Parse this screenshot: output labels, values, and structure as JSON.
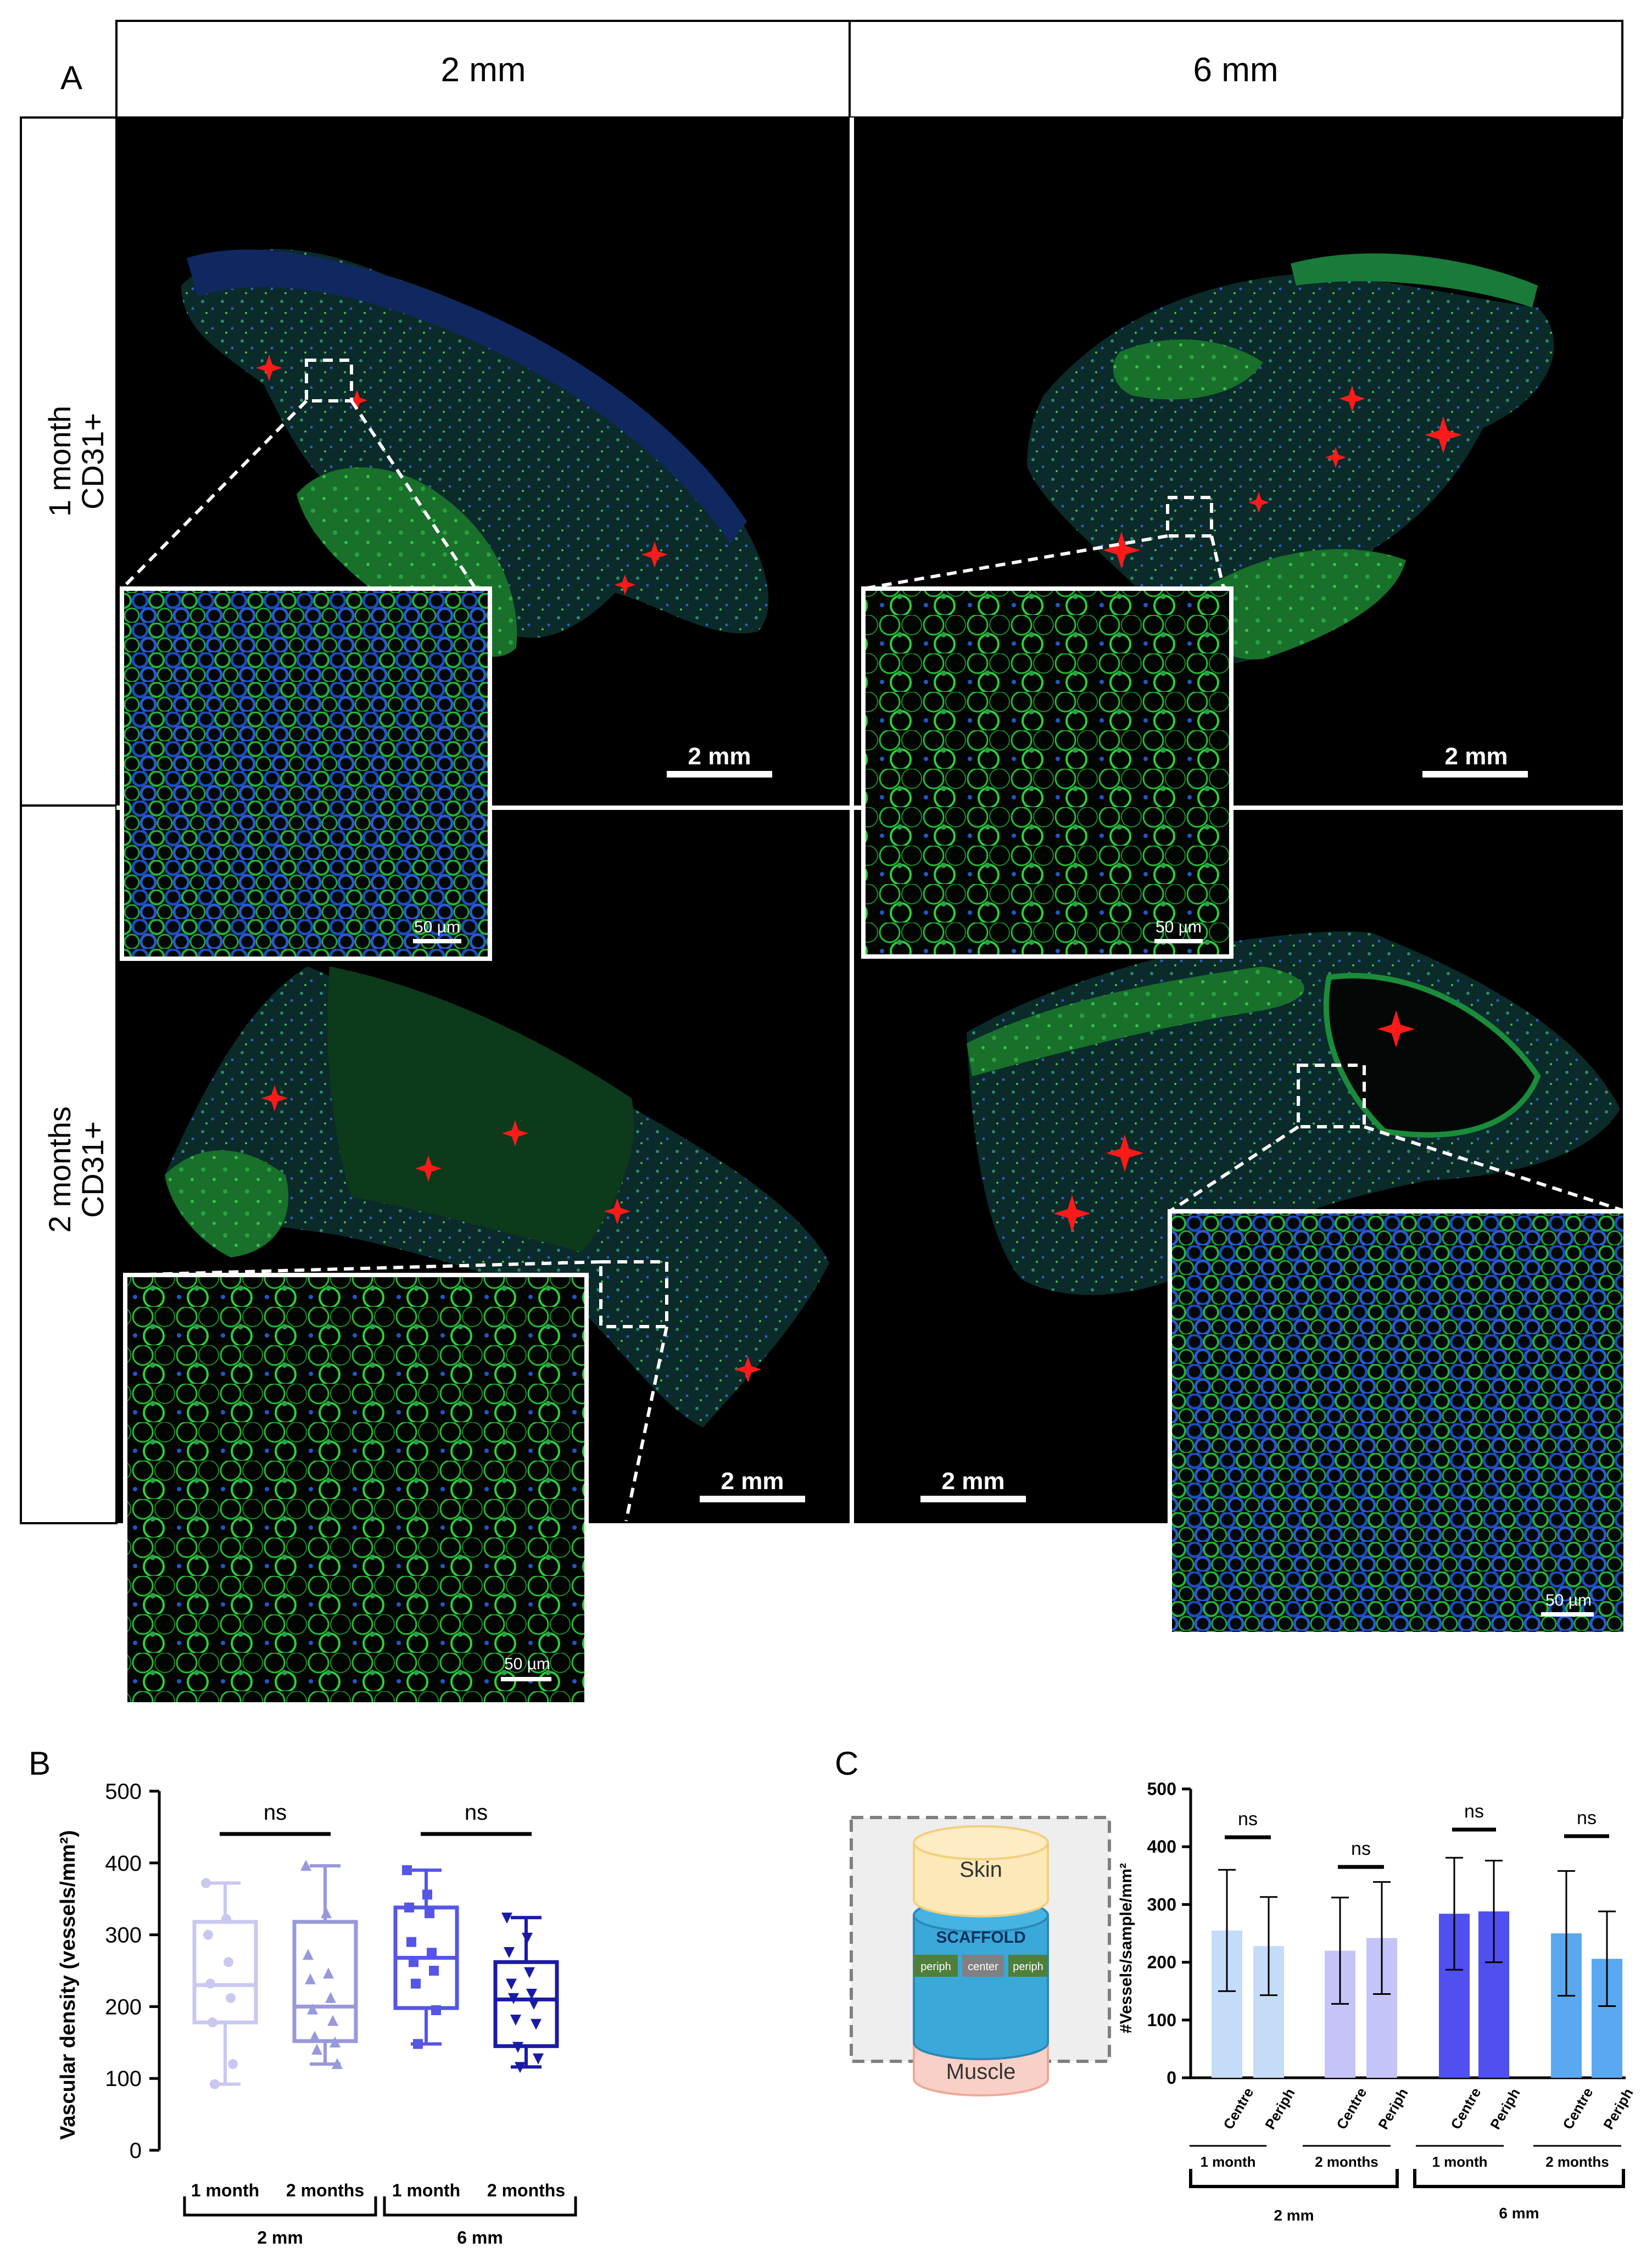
{
  "panelA": {
    "label": "A",
    "col_headers": [
      "2 mm",
      "6 mm"
    ],
    "row_headers": [
      {
        "line1": "1 month",
        "line2": "CD31+"
      },
      {
        "line1": "2 months",
        "line2": "CD31+"
      }
    ],
    "scale_bar_main": "2 mm",
    "scale_bar_inset": "50 µm",
    "colors": {
      "tissue_green": "#1fb82e",
      "nuclei_blue": "#2040c8",
      "marker_red": "#ff1a1a",
      "background": "#000000"
    }
  },
  "panelB": {
    "label": "B",
    "ylabel": "Vascular density (vessels/mm²)",
    "y_ticks": [
      "0",
      "100",
      "200",
      "300",
      "400",
      "500"
    ],
    "ns_labels": [
      "ns",
      "ns"
    ],
    "group_labels": [
      "1 month",
      "2 months",
      "1 month",
      "2 months"
    ],
    "bracket_labels": [
      "2 mm",
      "6 mm"
    ]
  },
  "panelC": {
    "label": "C",
    "diagram": {
      "skin": "Skin",
      "scaffold": "SCAFFOLD",
      "periph_left": "periph",
      "center": "center",
      "periph_right": "periph",
      "muscle": "Muscle"
    },
    "ylabel": "#Vessels/sample/mm²",
    "y_ticks": [
      "0",
      "100",
      "200",
      "300",
      "400",
      "500"
    ],
    "bar_labels": [
      "Centre",
      "Periph",
      "Centre",
      "Periph",
      "Centre",
      "Periph",
      "Centre",
      "Periph"
    ],
    "ns_labels": [
      "ns",
      "ns",
      "ns",
      "ns"
    ],
    "group_labels": [
      "1 month",
      "2 months",
      "1 month",
      "2 months"
    ],
    "bracket_labels": [
      "2 mm",
      "6 mm"
    ]
  },
  "chart_data": [
    {
      "type": "box",
      "panel": "B",
      "ylabel": "Vascular density (vessels/mm²)",
      "ylim": [
        0,
        500
      ],
      "categories": [
        "1 month",
        "2 months",
        "1 month",
        "2 months"
      ],
      "groups": [
        "2 mm",
        "2 mm",
        "6 mm",
        "6 mm"
      ],
      "colors": [
        "#c8c8f0",
        "#9898dc",
        "#5555e8",
        "#1a1aa8"
      ],
      "boxes": [
        {
          "min": 92,
          "q1": 178,
          "median": 230,
          "q3": 318,
          "max": 372
        },
        {
          "min": 120,
          "q1": 152,
          "median": 200,
          "q3": 318,
          "max": 396
        },
        {
          "min": 148,
          "q1": 198,
          "median": 268,
          "q3": 338,
          "max": 390
        },
        {
          "min": 116,
          "q1": 145,
          "median": 210,
          "q3": 262,
          "max": 324
        }
      ],
      "points": [
        [
          372,
          322,
          300,
          262,
          232,
          212,
          178,
          120,
          92
        ],
        [
          396,
          330,
          272,
          246,
          238,
          212,
          196,
          180,
          158,
          150,
          140,
          120
        ],
        [
          390,
          356,
          338,
          330,
          290,
          275,
          262,
          250,
          232,
          195,
          148
        ],
        [
          324,
          296,
          276,
          248,
          232,
          218,
          212,
          204,
          182,
          176,
          144,
          128,
          116
        ]
      ],
      "comparisons": [
        {
          "between": [
            0,
            1
          ],
          "label": "ns"
        },
        {
          "between": [
            2,
            3
          ],
          "label": "ns"
        }
      ]
    },
    {
      "type": "bar",
      "panel": "C",
      "ylabel": "#Vessels/sample/mm²",
      "ylim": [
        0,
        500
      ],
      "categories": [
        "Centre",
        "Periph",
        "Centre",
        "Periph",
        "Centre",
        "Periph",
        "Centre",
        "Periph"
      ],
      "groups": [
        "1 month",
        "1 month",
        "2 months",
        "2 months",
        "1 month",
        "1 month",
        "2 months",
        "2 months"
      ],
      "sizes": [
        "2 mm",
        "2 mm",
        "2 mm",
        "2 mm",
        "6 mm",
        "6 mm",
        "6 mm",
        "6 mm"
      ],
      "values": [
        255,
        228,
        220,
        242,
        284,
        288,
        250,
        206
      ],
      "errors": [
        105,
        85,
        92,
        97,
        97,
        88,
        108,
        82
      ],
      "colors": [
        "#c4dcf8",
        "#c4dcf8",
        "#c4c4f8",
        "#c4c4f8",
        "#5050f0",
        "#5050f0",
        "#5aa8f0",
        "#5aa8f0"
      ],
      "comparisons": [
        {
          "between": [
            0,
            1
          ],
          "label": "ns"
        },
        {
          "between": [
            2,
            3
          ],
          "label": "ns"
        },
        {
          "between": [
            4,
            5
          ],
          "label": "ns"
        },
        {
          "between": [
            6,
            7
          ],
          "label": "ns"
        }
      ]
    }
  ]
}
